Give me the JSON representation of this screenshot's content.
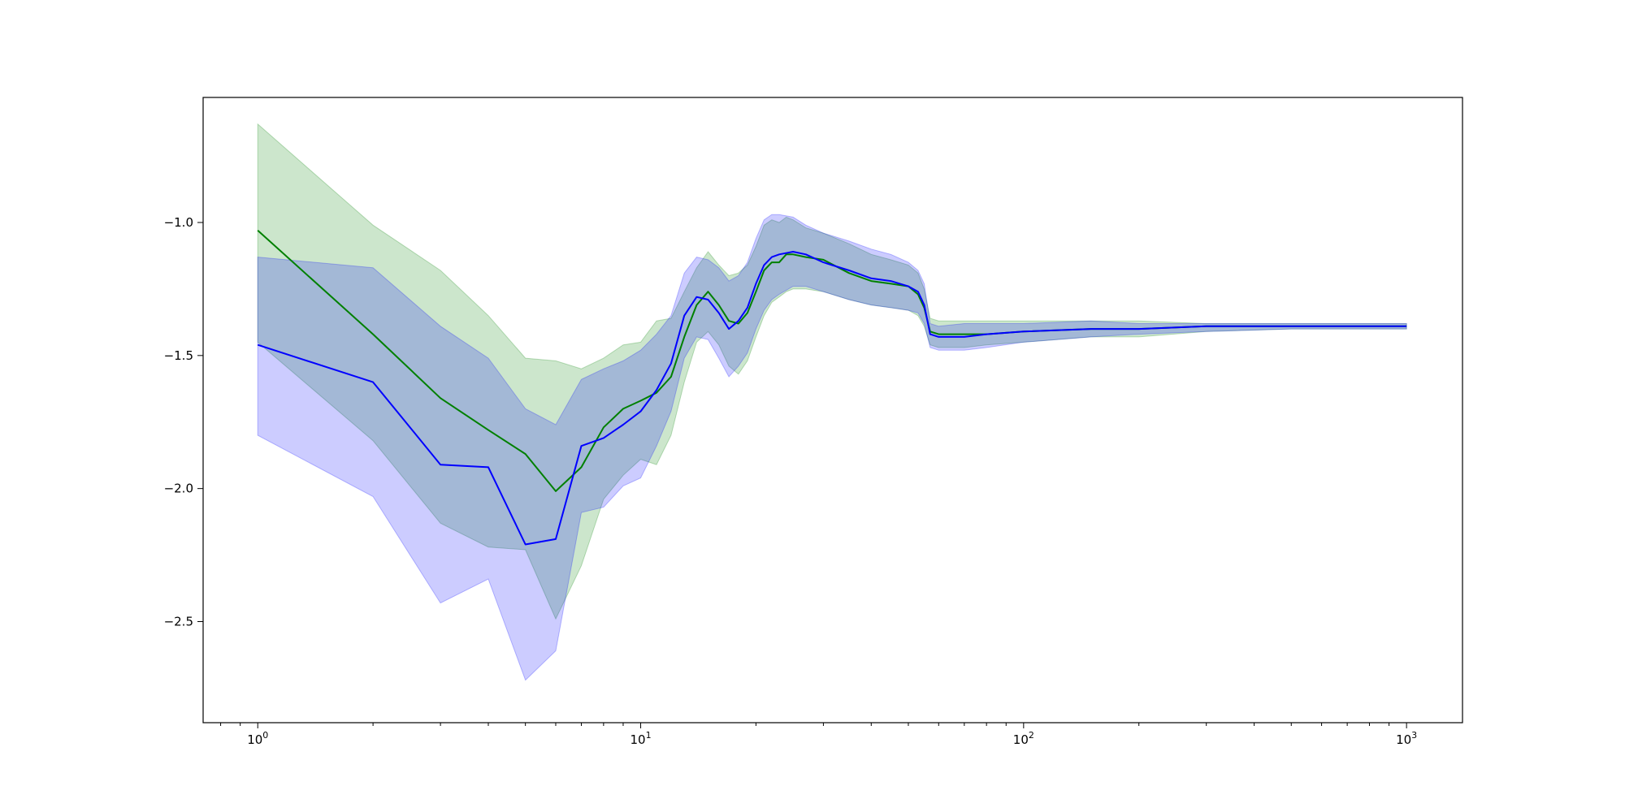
{
  "chart_data": {
    "type": "line",
    "x_scale": "log",
    "xlim": [
      0.72,
      1400
    ],
    "ylim": [
      -2.88,
      -0.53
    ],
    "grid": false,
    "legend": "none",
    "x_ticks": [
      {
        "value": 1,
        "base": "10",
        "exp": "0"
      },
      {
        "value": 10,
        "base": "10",
        "exp": "1"
      },
      {
        "value": 100,
        "base": "10",
        "exp": "2"
      },
      {
        "value": 1000,
        "base": "10",
        "exp": "3"
      }
    ],
    "y_ticks": [
      {
        "value": -1.0,
        "label": "−1.0"
      },
      {
        "value": -1.5,
        "label": "−1.5"
      },
      {
        "value": -2.0,
        "label": "−2.0"
      },
      {
        "value": -2.5,
        "label": "−2.5"
      }
    ],
    "series": [
      {
        "color": "#008000",
        "band_color": "#008000",
        "points": [
          [
            1,
            -1.03,
            -0.63,
            -1.45
          ],
          [
            2,
            -1.42,
            -1.01,
            -1.82
          ],
          [
            3,
            -1.66,
            -1.18,
            -2.13
          ],
          [
            4,
            -1.78,
            -1.35,
            -2.22
          ],
          [
            5,
            -1.87,
            -1.51,
            -2.23
          ],
          [
            6,
            -2.01,
            -1.52,
            -2.49
          ],
          [
            7,
            -1.92,
            -1.55,
            -2.29
          ],
          [
            8,
            -1.77,
            -1.51,
            -2.04
          ],
          [
            9,
            -1.7,
            -1.46,
            -1.95
          ],
          [
            10,
            -1.67,
            -1.45,
            -1.89
          ],
          [
            11,
            -1.64,
            -1.37,
            -1.91
          ],
          [
            12,
            -1.58,
            -1.36,
            -1.8
          ],
          [
            13,
            -1.43,
            -1.26,
            -1.6
          ],
          [
            14,
            -1.31,
            -1.17,
            -1.45
          ],
          [
            15,
            -1.26,
            -1.11,
            -1.41
          ],
          [
            16,
            -1.31,
            -1.16,
            -1.46
          ],
          [
            17,
            -1.37,
            -1.2,
            -1.54
          ],
          [
            18,
            -1.38,
            -1.19,
            -1.57
          ],
          [
            19,
            -1.34,
            -1.16,
            -1.52
          ],
          [
            20,
            -1.26,
            -1.09,
            -1.43
          ],
          [
            21,
            -1.18,
            -1.01,
            -1.35
          ],
          [
            22,
            -1.15,
            -0.99,
            -1.3
          ],
          [
            23,
            -1.15,
            -1.0,
            -1.28
          ],
          [
            24,
            -1.12,
            -0.98,
            -1.26
          ],
          [
            25,
            -1.12,
            -0.99,
            -1.25
          ],
          [
            27,
            -1.13,
            -1.02,
            -1.25
          ],
          [
            30,
            -1.14,
            -1.04,
            -1.26
          ],
          [
            35,
            -1.19,
            -1.08,
            -1.29
          ],
          [
            40,
            -1.22,
            -1.12,
            -1.31
          ],
          [
            45,
            -1.23,
            -1.14,
            -1.32
          ],
          [
            50,
            -1.24,
            -1.16,
            -1.33
          ],
          [
            53,
            -1.27,
            -1.19,
            -1.35
          ],
          [
            55,
            -1.32,
            -1.25,
            -1.39
          ],
          [
            57,
            -1.41,
            -1.36,
            -1.46
          ],
          [
            60,
            -1.42,
            -1.37,
            -1.47
          ],
          [
            70,
            -1.42,
            -1.37,
            -1.47
          ],
          [
            80,
            -1.42,
            -1.37,
            -1.46
          ],
          [
            100,
            -1.41,
            -1.37,
            -1.45
          ],
          [
            150,
            -1.4,
            -1.37,
            -1.43
          ],
          [
            200,
            -1.4,
            -1.37,
            -1.43
          ],
          [
            300,
            -1.39,
            -1.38,
            -1.41
          ],
          [
            500,
            -1.39,
            -1.38,
            -1.4
          ],
          [
            1000,
            -1.39,
            -1.38,
            -1.4
          ]
        ]
      },
      {
        "color": "#0000ff",
        "band_color": "#0000ff",
        "points": [
          [
            1,
            -1.46,
            -1.13,
            -1.8
          ],
          [
            2,
            -1.6,
            -1.17,
            -2.03
          ],
          [
            3,
            -1.91,
            -1.39,
            -2.43
          ],
          [
            4,
            -1.92,
            -1.51,
            -2.34
          ],
          [
            5,
            -2.21,
            -1.7,
            -2.72
          ],
          [
            6,
            -2.19,
            -1.76,
            -2.61
          ],
          [
            7,
            -1.84,
            -1.59,
            -2.09
          ],
          [
            8,
            -1.81,
            -1.55,
            -2.07
          ],
          [
            9,
            -1.76,
            -1.52,
            -1.99
          ],
          [
            10,
            -1.71,
            -1.48,
            -1.96
          ],
          [
            11,
            -1.63,
            -1.42,
            -1.84
          ],
          [
            12,
            -1.53,
            -1.35,
            -1.71
          ],
          [
            13,
            -1.35,
            -1.19,
            -1.51
          ],
          [
            14,
            -1.28,
            -1.13,
            -1.43
          ],
          [
            15,
            -1.29,
            -1.14,
            -1.44
          ],
          [
            16,
            -1.34,
            -1.17,
            -1.51
          ],
          [
            17,
            -1.4,
            -1.22,
            -1.58
          ],
          [
            18,
            -1.37,
            -1.2,
            -1.54
          ],
          [
            19,
            -1.32,
            -1.15,
            -1.49
          ],
          [
            20,
            -1.23,
            -1.06,
            -1.4
          ],
          [
            21,
            -1.16,
            -0.99,
            -1.33
          ],
          [
            22,
            -1.13,
            -0.97,
            -1.29
          ],
          [
            23,
            -1.12,
            -0.97,
            -1.27
          ],
          [
            25,
            -1.11,
            -0.98,
            -1.24
          ],
          [
            27,
            -1.12,
            -1.01,
            -1.24
          ],
          [
            30,
            -1.15,
            -1.04,
            -1.26
          ],
          [
            35,
            -1.18,
            -1.07,
            -1.29
          ],
          [
            40,
            -1.21,
            -1.1,
            -1.31
          ],
          [
            45,
            -1.22,
            -1.12,
            -1.32
          ],
          [
            50,
            -1.24,
            -1.15,
            -1.33
          ],
          [
            53,
            -1.26,
            -1.18,
            -1.34
          ],
          [
            55,
            -1.31,
            -1.23,
            -1.38
          ],
          [
            57,
            -1.42,
            -1.38,
            -1.47
          ],
          [
            60,
            -1.43,
            -1.39,
            -1.48
          ],
          [
            70,
            -1.43,
            -1.38,
            -1.48
          ],
          [
            80,
            -1.42,
            -1.38,
            -1.47
          ],
          [
            100,
            -1.41,
            -1.38,
            -1.45
          ],
          [
            150,
            -1.4,
            -1.37,
            -1.43
          ],
          [
            200,
            -1.4,
            -1.38,
            -1.42
          ],
          [
            300,
            -1.39,
            -1.38,
            -1.41
          ],
          [
            500,
            -1.39,
            -1.38,
            -1.4
          ],
          [
            1000,
            -1.39,
            -1.38,
            -1.4
          ]
        ]
      }
    ]
  }
}
